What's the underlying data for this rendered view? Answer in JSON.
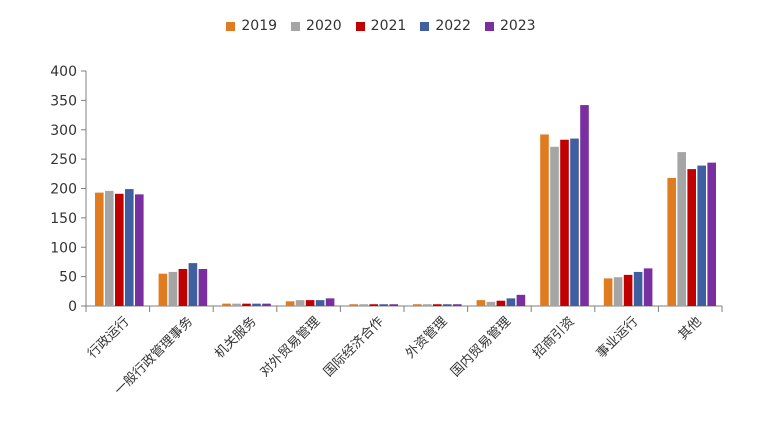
{
  "chart_data": {
    "type": "bar",
    "title": "",
    "xlabel": "",
    "ylabel": "",
    "ylim": [
      0,
      400
    ],
    "yticks": [
      "0",
      "50",
      "100",
      "150",
      "200",
      "250",
      "300",
      "350",
      "400"
    ],
    "legend_position": "top-center",
    "grid": false,
    "categories": [
      "行政运行",
      "一般行政管理事务",
      "机关服务",
      "对外贸易管理",
      "国际经济合作",
      "外资管理",
      "国内贸易管理",
      "招商引资",
      "事业运行",
      "其他"
    ],
    "series": [
      {
        "name": "2019",
        "color": "#E07B20",
        "values": [
          193,
          55,
          4,
          8,
          3,
          3,
          10,
          292,
          47,
          218
        ]
      },
      {
        "name": "2020",
        "color": "#A5A5A5",
        "values": [
          196,
          58,
          4,
          10,
          3,
          3,
          7,
          271,
          49,
          262
        ]
      },
      {
        "name": "2021",
        "color": "#C00000",
        "values": [
          191,
          63,
          4,
          10,
          3,
          3,
          9,
          283,
          53,
          233
        ]
      },
      {
        "name": "2022",
        "color": "#3F5FA0",
        "values": [
          199,
          73,
          4,
          10,
          3,
          3,
          13,
          285,
          58,
          239
        ]
      },
      {
        "name": "2023",
        "color": "#7A2FA0",
        "values": [
          190,
          63,
          4,
          13,
          3,
          3,
          19,
          342,
          64,
          244
        ]
      }
    ]
  }
}
